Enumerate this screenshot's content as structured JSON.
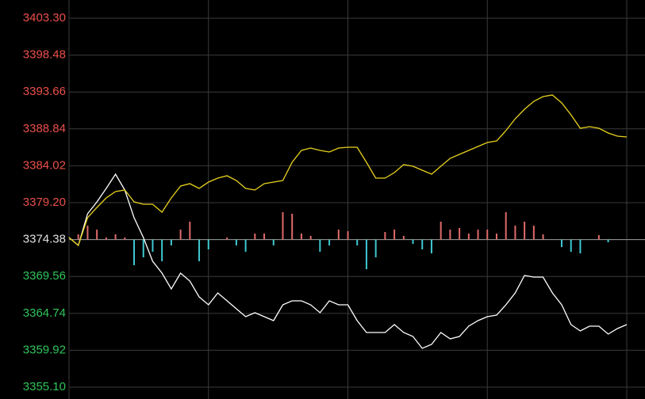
{
  "chart_data": {
    "type": "intraday",
    "ylim": [
      3353.55,
      3405.68
    ],
    "yticks": [
      {
        "value": 3403.3,
        "label": "3403.30"
      },
      {
        "value": 3398.48,
        "label": "3398.48"
      },
      {
        "value": 3393.66,
        "label": "3393.66"
      },
      {
        "value": 3388.84,
        "label": "3388.84"
      },
      {
        "value": 3384.02,
        "label": "3384.02"
      },
      {
        "value": 3379.2,
        "label": "3379.20"
      },
      {
        "value": 3374.38,
        "label": "3374.38"
      },
      {
        "value": 3369.56,
        "label": "3369.56"
      },
      {
        "value": 3364.74,
        "label": "3364.74"
      },
      {
        "value": 3359.92,
        "label": "3359.92"
      },
      {
        "value": 3355.1,
        "label": "3355.10"
      }
    ],
    "baseline": 3374.38,
    "grid": true,
    "up_color": "#e8504a",
    "down_color": "#2fc45a",
    "flat_color": "#e0e0e0",
    "bar_up_color": "#e06a6a",
    "bar_down_color": "#3fc8d2",
    "series": [
      {
        "color": "#ffffff",
        "values": [
          3374.65,
          3373.62,
          3377.75,
          3379.3,
          3381.06,
          3382.92,
          3380.86,
          3377.24,
          3374.65,
          3371.55,
          3370.0,
          3367.93,
          3370.0,
          3368.96,
          3366.89,
          3365.86,
          3367.41,
          3366.38,
          3365.34,
          3364.31,
          3364.82,
          3364.31,
          3363.79,
          3365.86,
          3366.38,
          3366.38,
          3365.86,
          3364.82,
          3366.38,
          3365.86,
          3365.86,
          3363.79,
          3362.24,
          3362.24,
          3362.24,
          3363.27,
          3362.24,
          3361.72,
          3360.17,
          3360.69,
          3362.24,
          3361.41,
          3361.72,
          3363.07,
          3363.79,
          3364.31,
          3364.51,
          3365.86,
          3367.41,
          3369.69,
          3369.48,
          3369.48,
          3367.41,
          3365.86,
          3363.27,
          3362.45,
          3363.07,
          3363.07,
          3362.03,
          3362.76,
          3363.27
        ]
      },
      {
        "color": "#e8d21e",
        "values": [
          3374.65,
          3373.62,
          3377.24,
          3378.58,
          3379.82,
          3380.65,
          3380.86,
          3379.3,
          3378.99,
          3378.99,
          3377.96,
          3379.82,
          3381.37,
          3381.68,
          3381.06,
          3381.89,
          3382.41,
          3382.72,
          3382.1,
          3381.06,
          3380.86,
          3381.68,
          3381.89,
          3382.1,
          3384.48,
          3386.03,
          3386.34,
          3386.03,
          3385.82,
          3386.34,
          3386.44,
          3386.44,
          3384.48,
          3382.41,
          3382.41,
          3383.13,
          3384.17,
          3383.96,
          3383.44,
          3382.92,
          3383.96,
          3384.99,
          3385.51,
          3386.03,
          3386.54,
          3387.06,
          3387.27,
          3388.61,
          3390.16,
          3391.41,
          3392.44,
          3393.06,
          3393.27,
          3392.23,
          3390.68,
          3388.92,
          3389.13,
          3388.92,
          3388.3,
          3387.89,
          3387.79
        ]
      }
    ],
    "bars": [
      3374.38,
      3375.06,
      3376.2,
      3375.68,
      3374.65,
      3375.06,
      3374.65,
      3371.03,
      3372.06,
      3372.79,
      3371.55,
      3373.61,
      3375.68,
      3376.72,
      3371.55,
      3373.1,
      3374.34,
      3374.65,
      3373.61,
      3372.79,
      3375.17,
      3375.17,
      3373.61,
      3377.96,
      3377.75,
      3375.17,
      3374.86,
      3372.79,
      3373.61,
      3375.68,
      3375.48,
      3373.61,
      3370.51,
      3372.06,
      3375.37,
      3375.68,
      3374.86,
      3373.82,
      3373.1,
      3372.58,
      3376.72,
      3375.68,
      3375.89,
      3375.17,
      3375.68,
      3375.68,
      3375.17,
      3377.96,
      3376.2,
      3376.72,
      3376.2,
      3375.06,
      3374.38,
      3373.41,
      3372.79,
      3372.58,
      3374.34,
      3374.96,
      3374.03,
      3374.38,
      3374.38
    ]
  }
}
